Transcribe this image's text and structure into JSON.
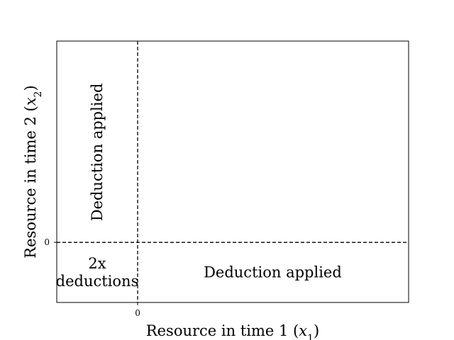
{
  "chart_data": {
    "type": "diagram",
    "title": "",
    "xlabel": "Resource in time 1",
    "xlabel_var": "x",
    "xlabel_sub": "1",
    "ylabel": "Resource in time 2",
    "ylabel_var": "x",
    "ylabel_sub": "2",
    "xlim": [
      -1,
      3.35
    ],
    "ylim": [
      -1,
      3.35
    ],
    "xticks": [
      {
        "value": 0,
        "label": "0"
      }
    ],
    "yticks": [
      {
        "value": 0,
        "label": "0"
      }
    ],
    "reference_lines": [
      {
        "orientation": "vertical",
        "value": 0,
        "style": "dashed"
      },
      {
        "orientation": "horizontal",
        "value": 0,
        "style": "dashed"
      }
    ],
    "regions": [
      {
        "text": "Deduction applied",
        "x": -0.5,
        "y": 1.5,
        "rotation": -90
      },
      {
        "text": "2x\ndeductions",
        "x": -0.5,
        "y": -0.5,
        "rotation": 0
      },
      {
        "text": "Deduction applied",
        "x": 1.67,
        "y": -0.5,
        "rotation": 0
      }
    ],
    "grid": false,
    "colors": {
      "axes": "#000000",
      "background": "#ffffff"
    }
  }
}
